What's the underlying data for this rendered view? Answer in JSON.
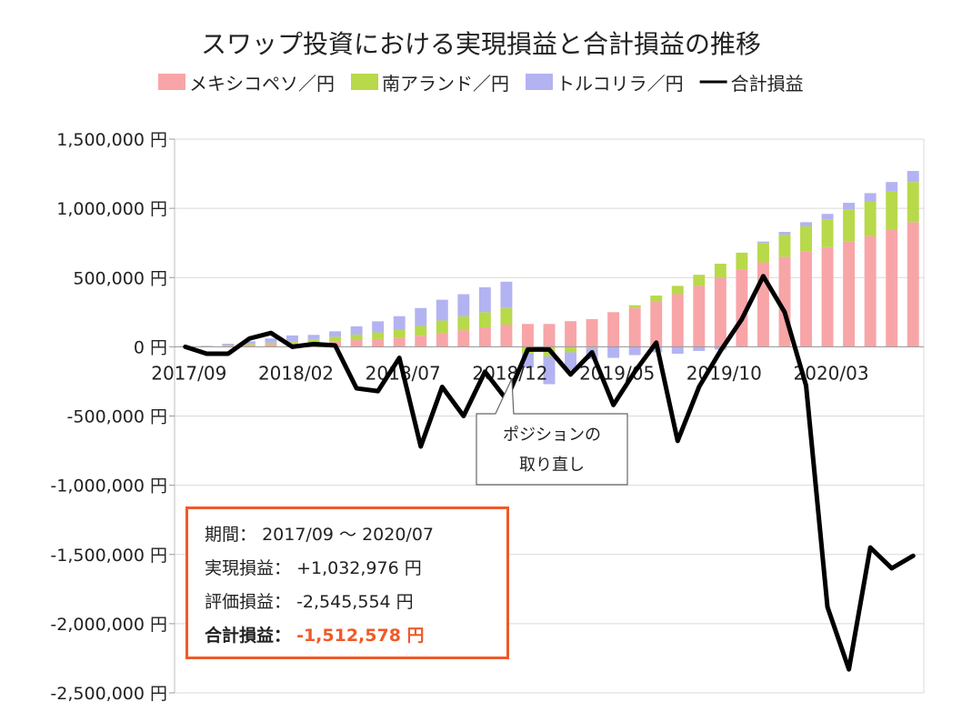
{
  "chart_data": {
    "type": "bar",
    "title": "スワップ投資における実現損益と合計損益の推移",
    "xlabel": "",
    "ylabel": "",
    "ylim": [
      -2500000,
      1500000
    ],
    "yticks": [
      1500000,
      1000000,
      500000,
      0,
      -500000,
      -1000000,
      -1500000,
      -2000000,
      -2500000
    ],
    "ytick_labels": [
      "1,500,000 円",
      "1,000,000 円",
      "500,000 円",
      "0 円",
      "-500,000 円",
      "-1,000,000 円",
      "-1,500,000 円",
      "-2,000,000 円",
      "-2,500,000 円"
    ],
    "x_tick_labels": [
      "2017/09",
      "2018/02",
      "2018/07",
      "2018/12",
      "2019/05",
      "2019/10",
      "2020/03"
    ],
    "x_tick_every": 5,
    "months": 35,
    "grid": true,
    "legend_position": "top",
    "series": [
      {
        "name": "メキシコペソ／円",
        "type": "stacked_bar",
        "color": "#f8a5a8",
        "values": [
          2000,
          3000,
          8000,
          12000,
          18000,
          24000,
          32000,
          40000,
          48000,
          56000,
          66000,
          80000,
          100000,
          120000,
          140000,
          160000,
          165000,
          165000,
          185000,
          200000,
          250000,
          280000,
          330000,
          380000,
          440000,
          500000,
          560000,
          610000,
          650000,
          690000,
          720000,
          760000,
          800000,
          850000,
          900000
        ]
      },
      {
        "name": "南アランド／円",
        "type": "stacked_bar",
        "color": "#b8d94a",
        "values": [
          0,
          0,
          4000,
          8000,
          12000,
          18000,
          24000,
          32000,
          40000,
          48000,
          55000,
          70000,
          90000,
          100000,
          110000,
          120000,
          -50000,
          -70000,
          -40000,
          -10000,
          0,
          20000,
          40000,
          60000,
          80000,
          100000,
          120000,
          140000,
          160000,
          180000,
          200000,
          230000,
          250000,
          270000,
          290000
        ]
      },
      {
        "name": "トルコリラ／円",
        "type": "stacked_bar",
        "color": "#b3b3f2",
        "values": [
          2000,
          4000,
          10000,
          20000,
          30000,
          40000,
          30000,
          40000,
          60000,
          80000,
          100000,
          130000,
          150000,
          160000,
          180000,
          190000,
          -100000,
          -200000,
          -130000,
          -80000,
          -80000,
          -60000,
          -40000,
          -50000,
          -30000,
          -20000,
          0,
          10000,
          20000,
          30000,
          40000,
          50000,
          60000,
          70000,
          80000
        ]
      },
      {
        "name": "合計損益",
        "type": "line",
        "color": "#000000",
        "values": [
          0,
          -50000,
          -50000,
          60000,
          100000,
          0,
          20000,
          10000,
          -300000,
          -320000,
          -80000,
          -720000,
          -290000,
          -500000,
          -180000,
          -380000,
          -20000,
          -20000,
          -200000,
          -40000,
          -420000,
          -180000,
          30000,
          -680000,
          -290000,
          -30000,
          200000,
          510000,
          250000,
          -280000,
          -1880000,
          -2330000,
          -1450000,
          -1600000,
          -1510000
        ]
      }
    ],
    "annotation": {
      "text_line1": "ポジションの",
      "text_line2": "取り直し",
      "points_to_month": 15
    }
  },
  "summary": {
    "period_label": "期間：",
    "period_value": "2017/09 ～ 2020/07",
    "realized_label": "実現損益：",
    "realized_value": "+1,032,976 円",
    "unrealized_label": "評価損益：",
    "unrealized_value": "-2,545,554 円",
    "total_label": "合計損益：",
    "total_value": "-1,512,578 円"
  }
}
